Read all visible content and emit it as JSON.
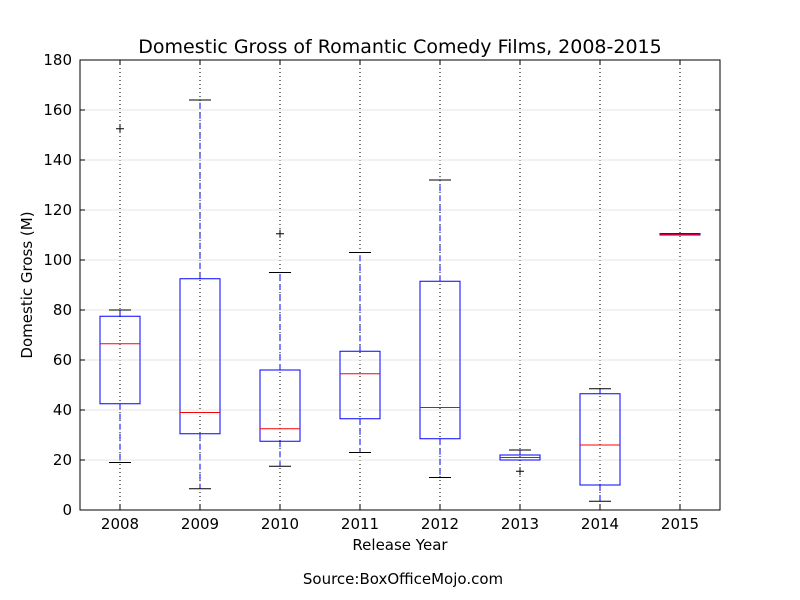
{
  "chart_data": {
    "type": "box",
    "title": "Domestic Gross of Romantic Comedy Films, 2008-2015",
    "xlabel": "Release Year",
    "ylabel": "Domestic Gross (M)",
    "source": "Source:BoxOfficeMojo.com",
    "ylim": [
      0,
      180
    ],
    "yticks": [
      "0",
      "20",
      "40",
      "60",
      "80",
      "100",
      "120",
      "140",
      "160",
      "180"
    ],
    "grid": true,
    "colors": {
      "box": "#0000ff",
      "median": "#ff0000",
      "whisker": "#0000ff",
      "cap": "#000000",
      "outlier": "#000000",
      "grid": "#000000"
    },
    "categories": [
      "2008",
      "2009",
      "2010",
      "2011",
      "2012",
      "2013",
      "2014",
      "2015"
    ],
    "boxes": [
      {
        "min": 19,
        "q1": 42.5,
        "median": 66.5,
        "q3": 77.5,
        "max": 80,
        "outliers": [
          152.5
        ]
      },
      {
        "min": 8.5,
        "q1": 30.5,
        "median": 39,
        "q3": 92.5,
        "max": 164,
        "outliers": []
      },
      {
        "min": 17.5,
        "q1": 27.5,
        "median": 32.5,
        "q3": 56,
        "max": 95,
        "outliers": [
          110.5
        ]
      },
      {
        "min": 23,
        "q1": 36.5,
        "median": 54.5,
        "q3": 63.5,
        "max": 103,
        "outliers": []
      },
      {
        "min": 13,
        "q1": 28.5,
        "median": 41,
        "q3": 91.5,
        "max": 132,
        "outliers": []
      },
      {
        "min": 20,
        "q1": 20,
        "median": 21,
        "q3": 22,
        "max": 24,
        "outliers": [
          15.5
        ]
      },
      {
        "min": 3.5,
        "q1": 10,
        "median": 26,
        "q3": 46.5,
        "max": 48.5,
        "outliers": []
      },
      {
        "min": 110,
        "q1": 110,
        "median": 110.3,
        "q3": 110.6,
        "max": 110.6,
        "outliers": []
      }
    ]
  }
}
